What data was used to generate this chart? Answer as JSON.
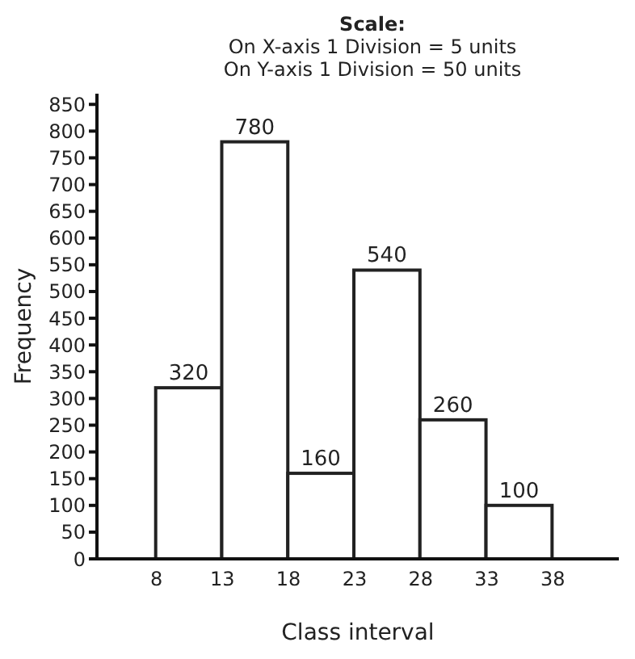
{
  "chart_data": {
    "type": "histogram",
    "title": "Scale:",
    "annotations": [
      "On X-axis 1 Division = 5 units",
      "On Y-axis 1 Division = 50 units"
    ],
    "xlabel": "Class interval",
    "ylabel": "Frequency",
    "bins": [
      8,
      13,
      18,
      23,
      28,
      33,
      38
    ],
    "values": [
      320,
      780,
      160,
      540,
      260,
      100
    ],
    "color": "#ffffff",
    "data_labels": true,
    "xlim": [
      3.5,
      43
    ],
    "xticks": [
      8,
      13,
      18,
      23,
      28,
      33,
      38
    ],
    "ylim": [
      0,
      870
    ],
    "yticks": [
      0,
      50,
      100,
      150,
      200,
      250,
      300,
      350,
      400,
      450,
      500,
      550,
      600,
      650,
      700,
      750,
      800,
      850
    ],
    "grid": false,
    "legend": false
  }
}
